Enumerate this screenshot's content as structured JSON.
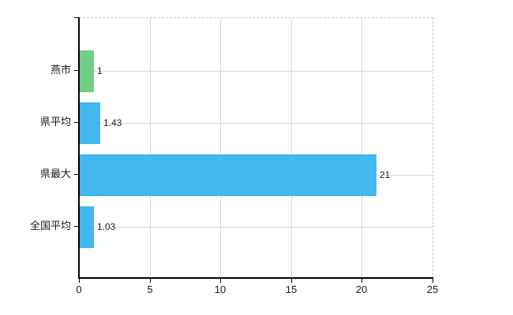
{
  "chart": {
    "background_color": "#ffffff",
    "axis_color": "#000000",
    "grid_color": "#d9d9d9",
    "plot_border_color": "#c9c9c9",
    "text_color": "#1a1a1a",
    "value_label_color": "#222222"
  },
  "chart_data": {
    "type": "bar",
    "orientation": "horizontal",
    "title": "",
    "xlabel": "",
    "ylabel": "",
    "categories": [
      "燕市",
      "県平均",
      "県最大",
      "全国平均"
    ],
    "values": [
      1,
      1.43,
      21,
      1.03
    ],
    "value_labels": [
      "1",
      "1.43",
      "21",
      "1.03"
    ],
    "bar_colors": [
      "#6ed082",
      "#41b8f0",
      "#41b8f0",
      "#41b8f0"
    ],
    "xlim": [
      0,
      25
    ],
    "x_ticks": [
      0,
      5,
      10,
      15,
      20,
      25
    ],
    "x_tick_labels": [
      "0",
      "5",
      "10",
      "15",
      "20",
      "25"
    ],
    "grid": "on",
    "legend": "none"
  }
}
